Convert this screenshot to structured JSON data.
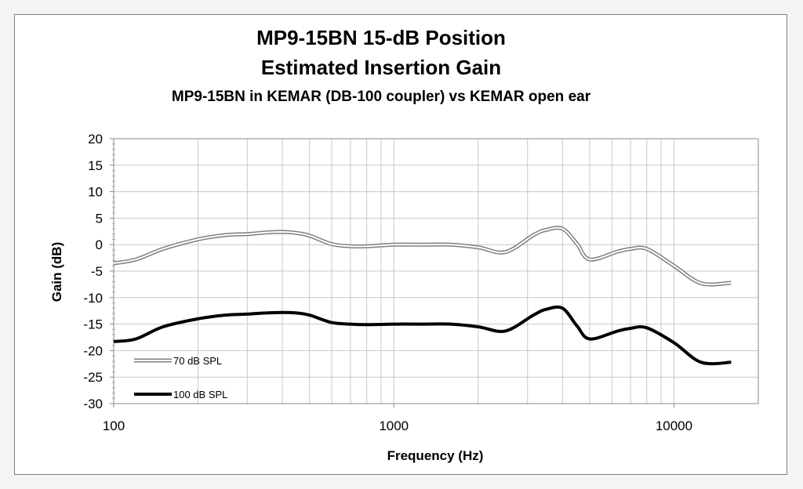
{
  "chart_data": {
    "type": "line",
    "title": [
      "MP9-15BN  15-dB Position",
      "Estimated Insertion Gain"
    ],
    "subtitle": "MP9-15BN in KEMAR (DB-100 coupler) vs KEMAR open ear",
    "xlabel": "Frequency (Hz)",
    "ylabel": "Gain (dB)",
    "x_scale": "log",
    "xlim": [
      100,
      20000
    ],
    "ylim": [
      -30,
      20
    ],
    "x_ticks": [
      100,
      1000,
      10000
    ],
    "x_tick_labels": [
      "100",
      "1000",
      "10000"
    ],
    "y_ticks": [
      20,
      15,
      10,
      5,
      0,
      -5,
      -10,
      -15,
      -20,
      -25,
      -30
    ],
    "grid": true,
    "legend_position": "bottom-left",
    "series": [
      {
        "name": "70 dB SPL",
        "style": "double-line",
        "color": "#7f7f7f",
        "x": [
          100,
          120,
          150,
          200,
          250,
          300,
          350,
          400,
          450,
          500,
          600,
          700,
          800,
          1000,
          1250,
          1600,
          2000,
          2500,
          3150,
          3500,
          4000,
          4500,
          5000,
          6300,
          7000,
          8000,
          10000,
          12500,
          16000
        ],
        "y": [
          -3.5,
          -2.8,
          -0.8,
          1.0,
          1.8,
          2.0,
          2.3,
          2.4,
          2.2,
          1.7,
          0.1,
          -0.3,
          -0.3,
          0.0,
          0.0,
          0.0,
          -0.5,
          -1.4,
          1.8,
          2.8,
          3.0,
          0.2,
          -2.8,
          -1.3,
          -0.8,
          -0.8,
          -4.0,
          -7.3,
          -7.2
        ]
      },
      {
        "name": "100 dB SPL",
        "style": "thick-line",
        "color": "#000000",
        "x": [
          100,
          120,
          150,
          200,
          250,
          300,
          350,
          400,
          450,
          500,
          600,
          700,
          800,
          1000,
          1250,
          1600,
          2000,
          2500,
          3150,
          3500,
          4000,
          4500,
          5000,
          6300,
          7000,
          8000,
          10000,
          12500,
          16000
        ],
        "y": [
          -18.3,
          -17.8,
          -15.5,
          -14.0,
          -13.3,
          -13.1,
          -12.9,
          -12.8,
          -12.9,
          -13.3,
          -14.7,
          -15.0,
          -15.1,
          -15.0,
          -15.0,
          -15.0,
          -15.5,
          -16.3,
          -13.3,
          -12.2,
          -12.0,
          -15.3,
          -17.8,
          -16.3,
          -15.8,
          -15.7,
          -18.5,
          -22.2,
          -22.2
        ]
      }
    ]
  }
}
